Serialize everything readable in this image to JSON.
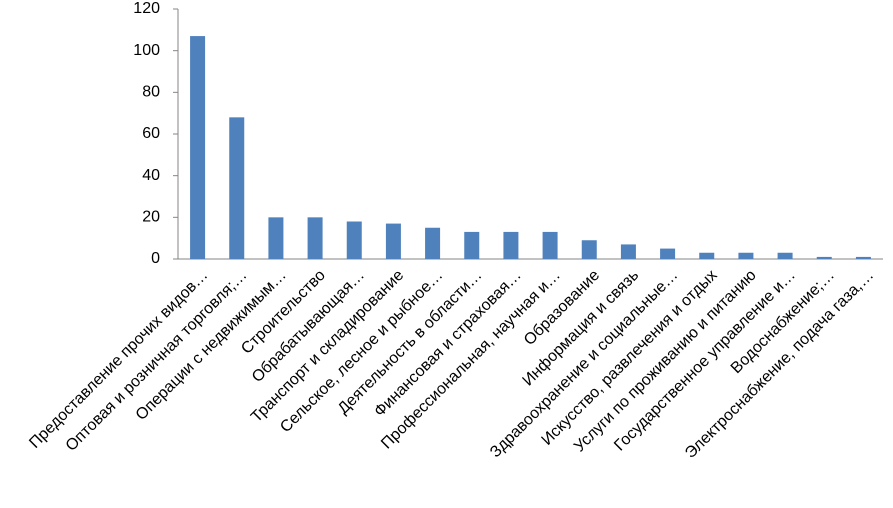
{
  "chart_data": {
    "type": "bar",
    "categories": [
      "Предоставление прочих видов…",
      "Оптовая и розничная торговля;…",
      "Операции с недвижимым…",
      "Строительство",
      "Обрабатывающая…",
      "Транспорт и складирование",
      "Сельское, лесное и рыбное…",
      "Деятельность в области…",
      "Финансовая и страховая…",
      "Профессиональная, научная и…",
      "Образование",
      "Информация и связь",
      "Здравоохранение и социальные…",
      "Искусство, развлечения и отдых",
      "Услуги по проживанию и питанию",
      "Государственное управление и…",
      "Водоснабжение;…",
      "Электроснабжение, подача газа,…"
    ],
    "values": [
      107,
      68,
      20,
      20,
      18,
      17,
      15,
      13,
      13,
      13,
      9,
      7,
      5,
      3,
      3,
      3,
      1,
      1
    ],
    "color": "#4f81bd",
    "ylim": [
      0,
      120
    ],
    "yticks": [
      0,
      20,
      40,
      60,
      80,
      100,
      120
    ],
    "grid": false
  }
}
